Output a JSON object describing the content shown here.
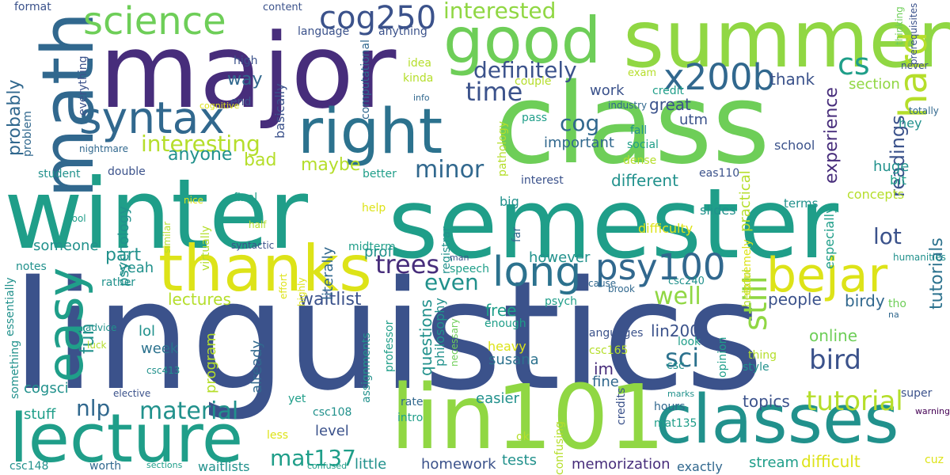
{
  "palette": {
    "dark_purple": "#472d7b",
    "indigo": "#3b528b",
    "steel_blue": "#31688e",
    "blue_teal": "#2c728e",
    "teal": "#21918c",
    "sea_green": "#1f9e89",
    "green": "#35b779",
    "light_green": "#6ece58",
    "lime": "#90d743",
    "yellow_green": "#b5de2b",
    "yellow": "#dde318",
    "gold": "#fde725",
    "deep_purple": "#440154",
    "violet": "#482475"
  },
  "words": [
    "linguistics",
    "winter",
    "semester",
    "class",
    "major",
    "summer",
    "lin101",
    "lecture",
    "classes",
    "thanks",
    "math",
    "good",
    "right",
    "bejar",
    "syntax",
    "long",
    "easy",
    "science",
    "psy100",
    "x200b",
    "cog250",
    "hard",
    "cs",
    "interesting",
    "time",
    "interested",
    "definitely",
    "trees",
    "minor",
    "cog",
    "well",
    "still",
    "even",
    "lot",
    "sci",
    "bird",
    "material",
    "tutorial",
    "nlp",
    "mat137",
    "probably",
    "way",
    "anyone",
    "bad",
    "maybe",
    "waitlist",
    "part",
    "yeah",
    "someone",
    "lectures",
    "fun",
    "week",
    "lol",
    "level",
    "susana",
    "prof",
    "however",
    "free",
    "questions",
    "homework",
    "tests",
    "memorization",
    "topics",
    "readings",
    "experience",
    "tutorials",
    "people",
    "birdy",
    "online",
    "lin200",
    "already",
    "program",
    "cogsci",
    "stuff",
    "little",
    "easier",
    "difficult",
    "stream",
    "exactly",
    "thank",
    "important",
    "great",
    "work",
    "utm",
    "practical",
    "section",
    "school",
    "huge",
    "hey",
    "different",
    "interest",
    "final",
    "philosophy",
    "psych",
    "im",
    "fine",
    "credits",
    "hours",
    "mat135",
    "csc108",
    "csc148",
    "worth",
    "waitlists",
    "student",
    "problem",
    "double",
    "format",
    "content",
    "language",
    "anything",
    "high",
    "everything",
    "basically",
    "computational",
    "end",
    "idea",
    "kinda",
    "couple",
    "info",
    "credit",
    "exam",
    "industry",
    "fall",
    "social",
    "dense",
    "pass",
    "cognitive",
    "nightmare",
    "nice",
    "similar",
    "psychology",
    "virtually",
    "literally",
    "midterm",
    "registrar",
    "help",
    "far",
    "pathology",
    "big",
    "slides",
    "difficulty",
    "concepts",
    "terms",
    "bit",
    "especially",
    "extremely",
    "helpful",
    "humanities",
    "totally",
    "thinking",
    "prerequisites",
    "never",
    "cool",
    "half",
    "syntactic",
    "notes",
    "essentially",
    "rather",
    "advice",
    "luck",
    "effort",
    "highly",
    "man",
    "speech",
    "necessary",
    "enough",
    "heavy",
    "professor",
    "assignments",
    "languages",
    "csc165",
    "csc",
    "look",
    "opinion",
    "style",
    "thing",
    "cause",
    "brook",
    "csc240",
    "na",
    "tho",
    "super",
    "marks",
    "warning",
    "elective",
    "yet",
    "rate",
    "intro",
    "ok",
    "confusing",
    "less",
    "confused",
    "sections",
    "csc413",
    "something",
    "better",
    "eas110",
    "cuz"
  ]
}
